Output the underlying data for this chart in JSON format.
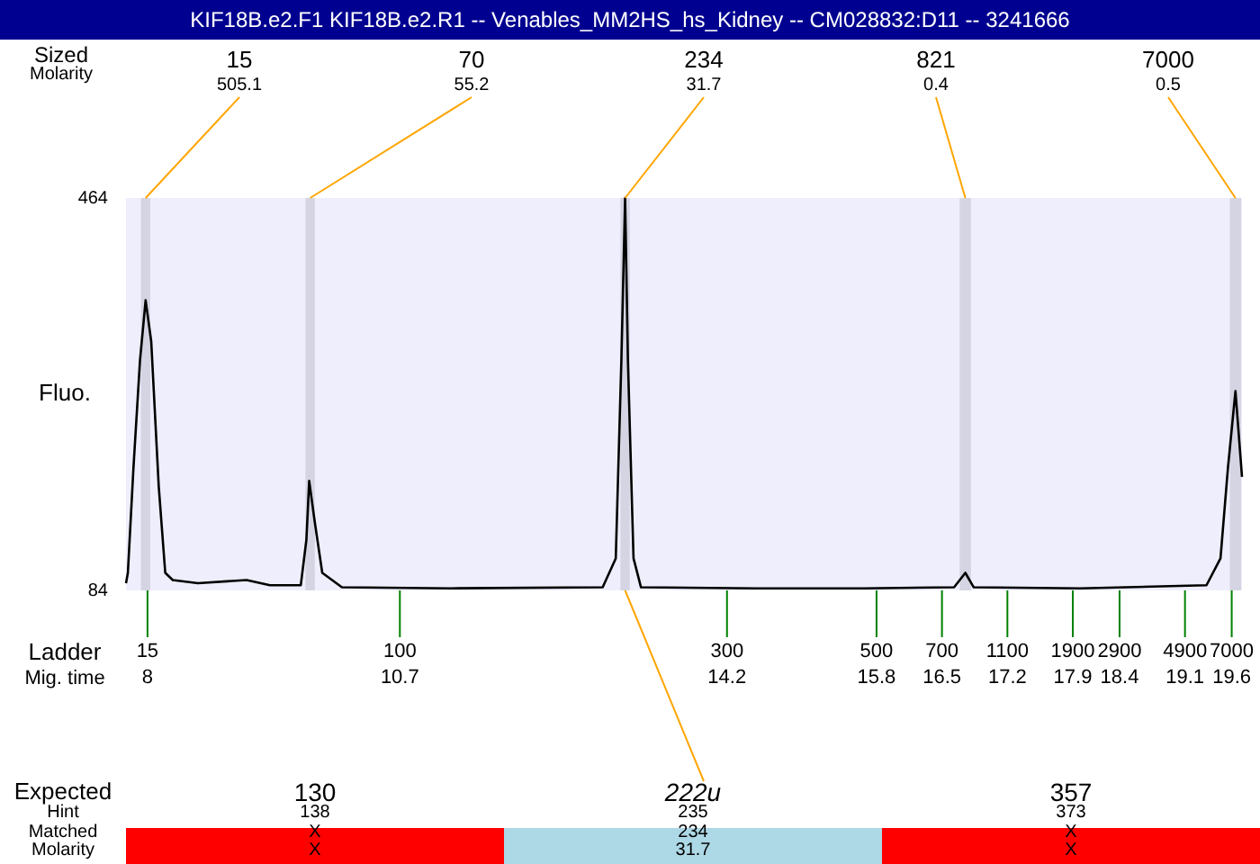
{
  "chart_data": {
    "type": "line",
    "title": "KIF18B.e2.F1  KIF18B.e2.R1 -- Venables_MM2HS_hs_Kidney -- CM028832:D11 -- 3241666",
    "ylabel": "Fluo.",
    "xlabel": "Mig. time",
    "x": [
      7.77,
      7.79,
      7.85,
      7.92,
      7.98,
      8.04,
      8.12,
      8.19,
      8.27,
      8.54,
      9.06,
      9.31,
      9.64,
      9.7,
      9.73,
      9.79,
      9.87,
      10.08,
      11.24,
      12.87,
      13.01,
      13.07,
      13.11,
      13.14,
      13.2,
      13.28,
      14.51,
      15.67,
      16.63,
      16.75,
      16.84,
      17.98,
      19.33,
      19.48,
      19.56,
      19.64,
      19.71
    ],
    "series": [
      {
        "color": "#000000",
        "values": [
          91,
          101,
          203,
          307,
          365,
          325,
          185,
          101,
          94,
          91,
          94,
          89,
          89,
          133,
          190,
          150,
          101,
          87,
          86,
          87,
          115,
          307,
          464,
          307,
          115,
          87,
          86,
          86,
          87,
          101,
          87,
          86,
          89,
          115,
          203,
          277,
          194
        ]
      }
    ],
    "xlim": [
      7.77,
      19.71
    ],
    "xticks": [
      8,
      10.7,
      14.2,
      15.8,
      16.5,
      17.2,
      17.9,
      18.4,
      19.1,
      19.6
    ],
    "ylim": [
      84,
      464
    ],
    "yticks": [
      84,
      464
    ],
    "grid": false,
    "legend": false,
    "marker": "none",
    "line_style": "solid",
    "bands": [
      {
        "axis": "x",
        "from": 7.93,
        "to": 8.03,
        "color": "#d4d4e2"
      },
      {
        "axis": "x",
        "from": 9.69,
        "to": 9.79,
        "color": "#d4d4e2"
      },
      {
        "axis": "x",
        "from": 13.06,
        "to": 13.16,
        "color": "#d4d4e2"
      },
      {
        "axis": "x",
        "from": 16.69,
        "to": 16.81,
        "color": "#d4d4e2"
      },
      {
        "axis": "x",
        "from": 19.58,
        "to": 19.7,
        "color": "#d4d4e2"
      }
    ],
    "annotations": [
      "Sized",
      "Molarity",
      {
        "text": "15",
        "x": 7.98,
        "y": 464
      },
      "505.1",
      {
        "text": "70",
        "x": 9.74,
        "y": 464
      },
      "55.2",
      {
        "text": "234",
        "x": 13.11,
        "y": 464
      },
      "31.7",
      {
        "text": "821",
        "x": 16.75,
        "y": 464
      },
      "0.4",
      {
        "text": "7000",
        "x": 19.64,
        "y": 464
      },
      "0.5",
      "Ladder",
      {
        "text": "15",
        "x": 8,
        "y": 84
      },
      {
        "text": "100",
        "x": 10.7,
        "y": 84
      },
      {
        "text": "300",
        "x": 14.2,
        "y": 84
      },
      {
        "text": "500",
        "x": 15.8,
        "y": 84
      },
      {
        "text": "700",
        "x": 16.5,
        "y": 84
      },
      {
        "text": "1100",
        "x": 17.2,
        "y": 84
      },
      {
        "text": "1900",
        "x": 17.9,
        "y": 84
      },
      {
        "text": "2900",
        "x": 18.4,
        "y": 84
      },
      {
        "text": "4900",
        "x": 19.1,
        "y": 84
      },
      {
        "text": "7000",
        "x": 19.6,
        "y": 84
      },
      "Expected",
      "Hint",
      "Matched",
      "Molarity",
      "130",
      {
        "text": "222u",
        "x": 13.11,
        "y": 84
      },
      "357",
      "138",
      "235",
      "373",
      "X",
      "234",
      "X",
      "X",
      "31.7",
      "X"
    ]
  }
}
